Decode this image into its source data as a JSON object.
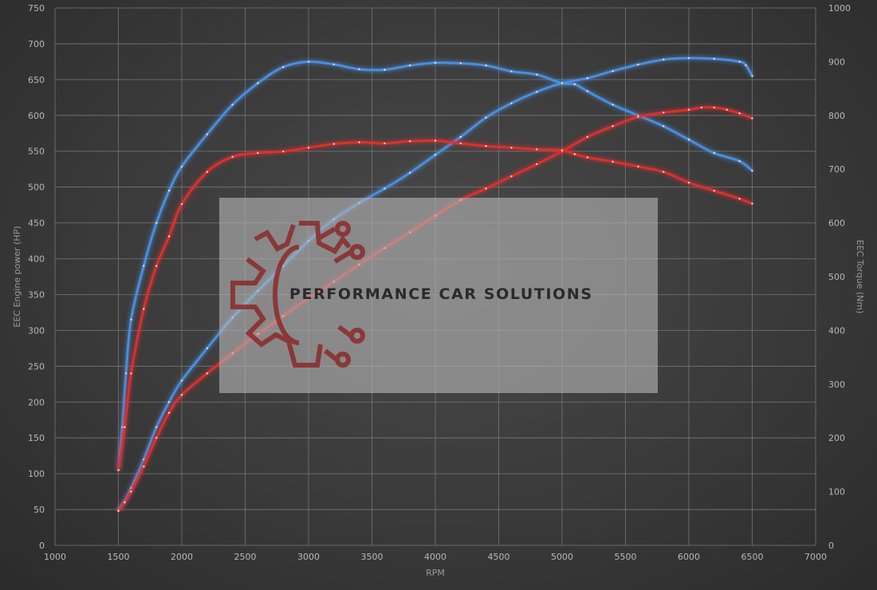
{
  "chart_data": {
    "type": "line",
    "title": "",
    "xlabel": "RPM",
    "ylabel_left": "EEC Engine power (HP)",
    "ylabel_right": "EEC Torque (Nm)",
    "xlim": [
      1000,
      7000
    ],
    "ylim_left": [
      0,
      750
    ],
    "ylim_right": [
      0,
      1000
    ],
    "x_ticks": [
      1000,
      1500,
      2000,
      2500,
      3000,
      3500,
      4000,
      4500,
      5000,
      5500,
      6000,
      6500,
      7000
    ],
    "y_left_ticks": [
      0,
      50,
      100,
      150,
      200,
      250,
      300,
      350,
      400,
      450,
      500,
      550,
      600,
      650,
      700,
      750
    ],
    "y_right_ticks": [
      0,
      100,
      200,
      300,
      400,
      500,
      600,
      700,
      800,
      900,
      1000
    ],
    "grid": true,
    "legend": "none",
    "series": [
      {
        "axis": "left",
        "color": "#4a90e2",
        "x": [
          1500,
          1550,
          1600,
          1700,
          1800,
          1900,
          2000,
          2200,
          2400,
          2600,
          2800,
          3000,
          3200,
          3400,
          3600,
          3800,
          4000,
          4200,
          4400,
          4600,
          4800,
          5000,
          5200,
          5400,
          5600,
          5800,
          6000,
          6200,
          6400,
          6450,
          6500
        ],
        "y": [
          50,
          62,
          80,
          120,
          165,
          200,
          230,
          275,
          318,
          355,
          390,
          425,
          455,
          478,
          498,
          520,
          545,
          570,
          597,
          617,
          633,
          645,
          652,
          662,
          671,
          678,
          680,
          679,
          675,
          670,
          655
        ]
      },
      {
        "axis": "right",
        "color": "#4a90e2",
        "x": [
          1500,
          1530,
          1560,
          1600,
          1700,
          1800,
          1900,
          2000,
          2200,
          2400,
          2600,
          2800,
          3000,
          3200,
          3400,
          3600,
          3800,
          4000,
          4200,
          4400,
          4600,
          4800,
          5000,
          5100,
          5200,
          5400,
          5600,
          5800,
          6000,
          6200,
          6400,
          6500
        ],
        "y": [
          140,
          220,
          320,
          420,
          520,
          600,
          660,
          705,
          765,
          820,
          860,
          890,
          900,
          895,
          886,
          885,
          893,
          898,
          897,
          893,
          882,
          876,
          860,
          858,
          845,
          820,
          800,
          780,
          755,
          730,
          715,
          697
        ]
      },
      {
        "axis": "left",
        "color": "#e03030",
        "x": [
          1500,
          1550,
          1600,
          1700,
          1800,
          1900,
          2000,
          2200,
          2400,
          2600,
          2800,
          3000,
          3200,
          3400,
          3600,
          3800,
          4000,
          4200,
          4400,
          4600,
          4800,
          5000,
          5200,
          5400,
          5600,
          5800,
          6000,
          6100,
          6200,
          6300,
          6400,
          6500
        ],
        "y": [
          48,
          60,
          75,
          110,
          150,
          185,
          210,
          240,
          268,
          295,
          320,
          345,
          368,
          392,
          415,
          437,
          460,
          482,
          498,
          515,
          532,
          550,
          570,
          585,
          598,
          604,
          608,
          611,
          611,
          608,
          603,
          596
        ]
      },
      {
        "axis": "right",
        "color": "#e03030",
        "x": [
          1500,
          1550,
          1600,
          1700,
          1800,
          1900,
          2000,
          2200,
          2400,
          2600,
          2800,
          3000,
          3200,
          3400,
          3600,
          3800,
          4000,
          4200,
          4400,
          4600,
          4800,
          5000,
          5100,
          5200,
          5400,
          5600,
          5800,
          6000,
          6200,
          6400,
          6500
        ],
        "y": [
          140,
          220,
          320,
          440,
          520,
          575,
          635,
          695,
          723,
          730,
          733,
          740,
          747,
          750,
          748,
          752,
          753,
          748,
          743,
          740,
          737,
          735,
          728,
          722,
          714,
          705,
          695,
          675,
          660,
          645,
          636
        ]
      }
    ],
    "watermark": "PERFORMANCE CAR SOLUTIONS"
  }
}
